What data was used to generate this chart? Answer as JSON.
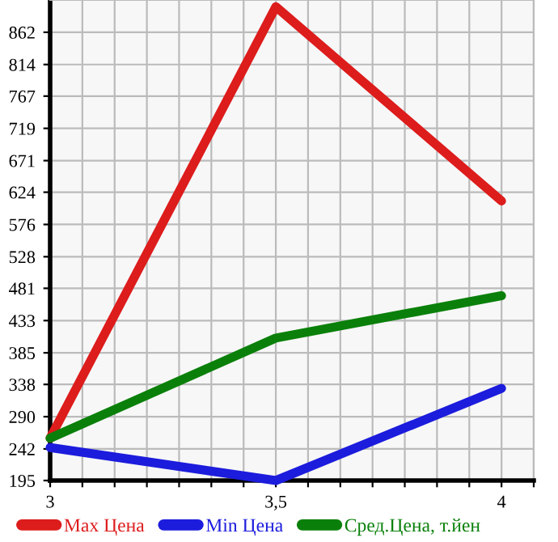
{
  "chart_data": {
    "type": "line",
    "x": [
      3,
      3.5,
      4
    ],
    "series": [
      {
        "name": "Max Цена",
        "color": "#dd1c1c",
        "values": [
          258,
          900,
          611
        ]
      },
      {
        "name": "Min Цена",
        "color": "#1c1cdd",
        "values": [
          244,
          195,
          332
        ]
      },
      {
        "name": "Сред.Цена, т.йен",
        "color": "#0a800a",
        "values": [
          258,
          407,
          470
        ]
      }
    ],
    "xlim": [
      3,
      4.0714
    ],
    "xticks": [
      3,
      {
        "value": 3.0714,
        "label": null
      },
      {
        "value": 3.1429,
        "label": null
      },
      {
        "value": 3.2143,
        "label": null
      },
      {
        "value": 3.2857,
        "label": null
      },
      {
        "value": 3.3571,
        "label": null
      },
      {
        "value": 3.4286,
        "label": null
      },
      {
        "value": 3.5,
        "label": "3,5"
      },
      {
        "value": 3.5714,
        "label": null
      },
      {
        "value": 3.6429,
        "label": null
      },
      {
        "value": 3.7143,
        "label": null
      },
      {
        "value": 3.7857,
        "label": null
      },
      {
        "value": 3.8571,
        "label": null
      },
      {
        "value": 3.9286,
        "label": null
      },
      4,
      {
        "value": 4.0714,
        "label": null
      }
    ],
    "ylim": [
      195,
      910
    ],
    "yticks": [
      195,
      242,
      290,
      338,
      385,
      433,
      481,
      528,
      576,
      624,
      671,
      719,
      767,
      814,
      862
    ],
    "grid": true,
    "legend": "bottom",
    "marker": "none",
    "line_style": "solid"
  }
}
